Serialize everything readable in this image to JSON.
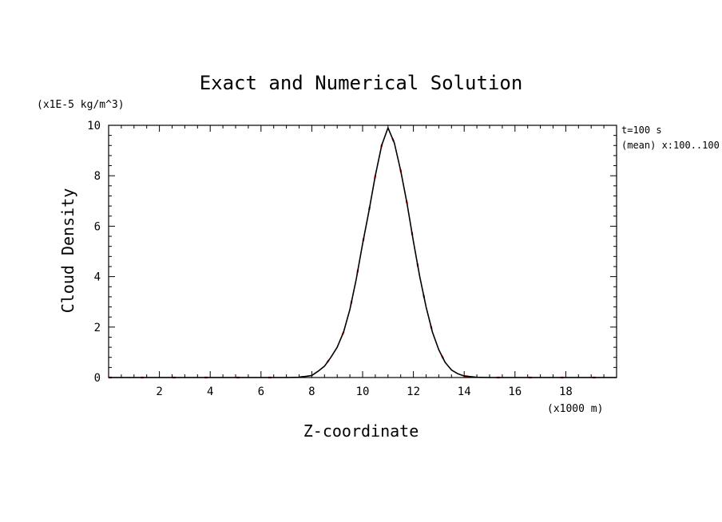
{
  "chart_data": {
    "type": "line",
    "title": "Exact and Numerical Solution",
    "xlabel": "Z-coordinate",
    "ylabel": "Cloud Density",
    "x_unit": "(x1000 m)",
    "y_unit": "(x1E-5 kg/m^3)",
    "annotations": [
      "t=100 s",
      "(mean) x:100..100"
    ],
    "xlim": [
      0,
      20
    ],
    "ylim": [
      0,
      10
    ],
    "x_ticks": [
      2,
      4,
      6,
      8,
      10,
      12,
      14,
      16,
      18
    ],
    "y_ticks": [
      0,
      2,
      4,
      6,
      8,
      10
    ],
    "x": [
      0,
      1,
      2,
      3,
      4,
      5,
      6,
      7,
      7.5,
      8,
      8.25,
      8.5,
      8.75,
      9,
      9.25,
      9.5,
      9.75,
      10,
      10.25,
      10.5,
      10.75,
      11,
      11.25,
      11.5,
      11.75,
      12,
      12.25,
      12.5,
      12.75,
      13,
      13.25,
      13.5,
      13.75,
      14,
      14.5,
      15,
      16,
      17,
      18,
      19,
      20
    ],
    "series": [
      {
        "name": "exact",
        "color": "#000000",
        "style": "solid",
        "values": [
          0,
          0,
          0,
          0,
          0,
          0,
          0,
          0,
          0.01,
          0.08,
          0.25,
          0.45,
          0.8,
          1.2,
          1.8,
          2.7,
          3.9,
          5.3,
          6.6,
          8.0,
          9.2,
          9.9,
          9.3,
          8.2,
          6.9,
          5.4,
          4.0,
          2.8,
          1.8,
          1.1,
          0.6,
          0.3,
          0.15,
          0.06,
          0.01,
          0,
          0,
          0,
          0,
          0,
          0
        ]
      },
      {
        "name": "numerical",
        "color": "#ff0000",
        "style": "dashed",
        "values": [
          0,
          0,
          0,
          0,
          0,
          0,
          0,
          0,
          0.01,
          0.08,
          0.25,
          0.45,
          0.8,
          1.2,
          1.8,
          2.7,
          3.9,
          5.3,
          6.6,
          8.0,
          9.2,
          9.9,
          9.3,
          8.2,
          6.9,
          5.4,
          4.0,
          2.8,
          1.8,
          1.1,
          0.6,
          0.3,
          0.15,
          0.06,
          0.01,
          0,
          0,
          0,
          0,
          0,
          0
        ]
      }
    ],
    "grid": false,
    "legend": "none"
  }
}
